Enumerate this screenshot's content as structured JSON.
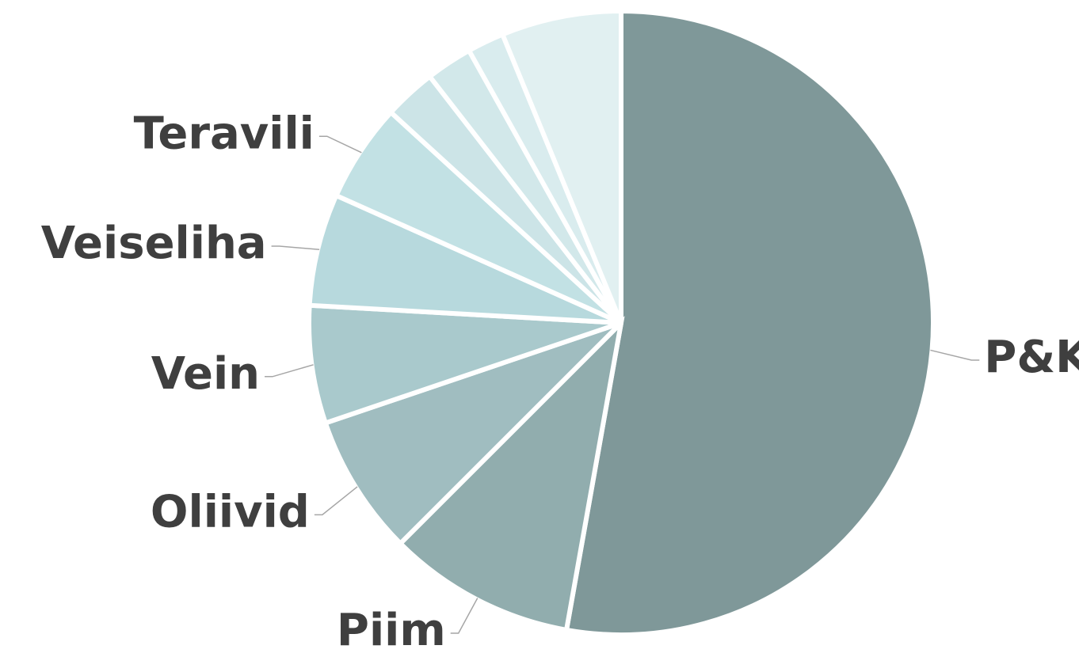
{
  "chart_data": {
    "type": "pie",
    "title": "",
    "slices": [
      {
        "label": "P&K",
        "value": 52.8,
        "color": "#7f9899"
      },
      {
        "label": "Piim",
        "value": 9.7,
        "color": "#91adae"
      },
      {
        "label": "Oliivid",
        "value": 7.3,
        "color": "#a0bdc0"
      },
      {
        "label": "Vein",
        "value": 6.1,
        "color": "#a9c9cc"
      },
      {
        "label": "Veiseliha",
        "value": 5.8,
        "color": "#b7d9dd"
      },
      {
        "label": "Teravili",
        "value": 5.1,
        "color": "#c2e1e4"
      },
      {
        "label": "",
        "value": 2.7,
        "color": "#cce4e7"
      },
      {
        "label": "",
        "value": 2.4,
        "color": "#d2e8ea"
      },
      {
        "label": "",
        "value": 1.9,
        "color": "#d9ecee"
      },
      {
        "label": "",
        "value": 6.2,
        "color": "#e1f0f1"
      }
    ],
    "start_angle_deg": 0,
    "direction": "clockwise",
    "labels_outside": true
  }
}
